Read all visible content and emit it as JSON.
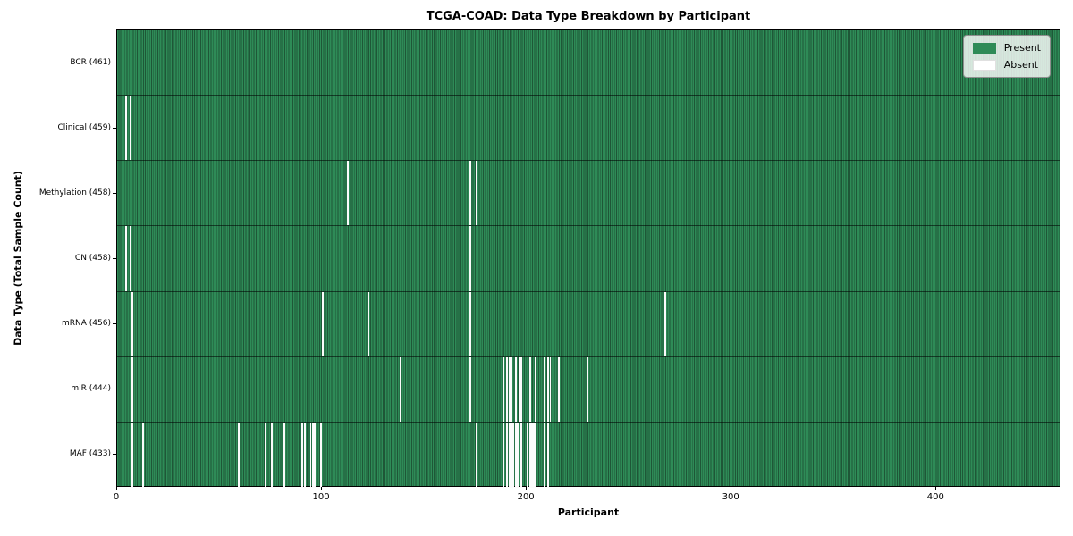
{
  "title": "TCGA-COAD: Data Type Breakdown by Participant",
  "xlabel": "Participant",
  "ylabel": "Data Type (Total Sample Count)",
  "legend": {
    "present_label": "Present",
    "absent_label": "Absent"
  },
  "colors": {
    "present": "#2e8b57",
    "absent": "#ffffff",
    "cell_edge": "#1e5737",
    "legend_bg": "rgba(255,255,255,0.8)",
    "legend_border": "#8f8f8f"
  },
  "chart_data": {
    "type": "heatmap",
    "title": "TCGA-COAD: Data Type Breakdown by Participant",
    "xlabel": "Participant",
    "ylabel": "Data Type (Total Sample Count)",
    "legend": [
      "Present",
      "Absent"
    ],
    "legend_position": "upper right",
    "grid": false,
    "n_participants": 461,
    "xlim": [
      0,
      461
    ],
    "x_ticks": [
      0,
      100,
      200,
      300,
      400
    ],
    "rows": [
      {
        "name": "BCR",
        "label": "BCR (461)",
        "present_count": 461,
        "absent_participants": []
      },
      {
        "name": "Clinical",
        "label": "Clinical (459)",
        "present_count": 459,
        "absent_participants": [
          4,
          6
        ]
      },
      {
        "name": "Methylation",
        "label": "Methylation (458)",
        "present_count": 458,
        "absent_participants": [
          112,
          172,
          175
        ]
      },
      {
        "name": "CN",
        "label": "CN (458)",
        "present_count": 458,
        "absent_participants": [
          4,
          6,
          172
        ]
      },
      {
        "name": "mRNA",
        "label": "mRNA (456)",
        "present_count": 456,
        "absent_participants": [
          7,
          100,
          122,
          172,
          267
        ]
      },
      {
        "name": "miR",
        "label": "miR (444)",
        "present_count": 444,
        "absent_participants": [
          7,
          138,
          172,
          188,
          190,
          191,
          192,
          194,
          196,
          197,
          201,
          204,
          208,
          210,
          211,
          215,
          229
        ]
      },
      {
        "name": "MAF",
        "label": "MAF (433)",
        "present_count": 433,
        "absent_participants": [
          7,
          12,
          59,
          72,
          75,
          81,
          90,
          91,
          94,
          95,
          96,
          99,
          175,
          188,
          190,
          191,
          192,
          193,
          194,
          195,
          197,
          200,
          201,
          202,
          203,
          204,
          208,
          210
        ]
      }
    ]
  }
}
